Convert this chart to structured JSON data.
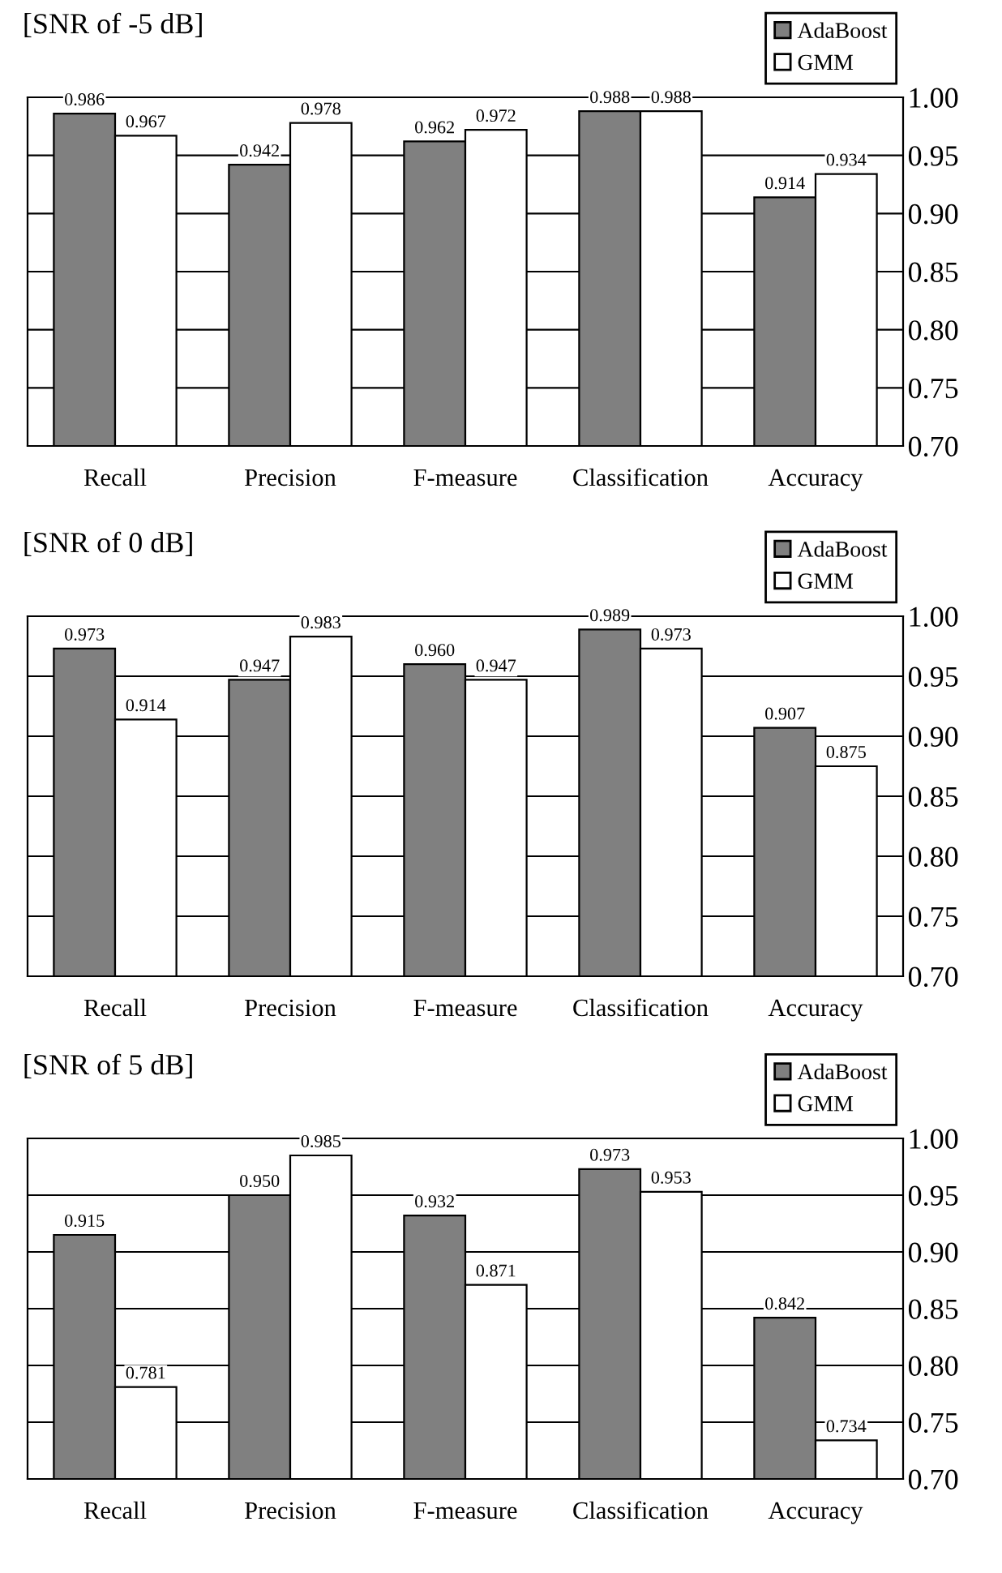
{
  "chart_data": [
    {
      "type": "bar",
      "title": "[SNR of -5 dB]",
      "categories": [
        "Recall",
        "Precision",
        "F-measure",
        "Classification",
        "Accuracy"
      ],
      "series": [
        {
          "name": "AdaBoost",
          "color": "#808080",
          "values": [
            0.986,
            0.942,
            0.962,
            0.988,
            0.914
          ],
          "value_labels": [
            "0.986",
            "0.942",
            "0.962",
            "0.988",
            "0.914"
          ]
        },
        {
          "name": "GMM",
          "color": "#ffffff",
          "values": [
            0.967,
            0.978,
            0.972,
            0.988,
            0.934
          ],
          "value_labels": [
            "0.967",
            "0.978",
            "0.972",
            "0.988",
            "0.934"
          ]
        }
      ],
      "ylim": [
        0.7,
        1.0
      ],
      "yticks": [
        {
          "value": 0.7,
          "label": "0.70"
        },
        {
          "value": 0.75,
          "label": "0.75"
        },
        {
          "value": 0.8,
          "label": "0.80"
        },
        {
          "value": 0.85,
          "label": "0.85"
        },
        {
          "value": 0.9,
          "label": "0.90"
        },
        {
          "value": 0.95,
          "label": "0.95"
        },
        {
          "value": 1.0,
          "label": "1.00"
        }
      ],
      "grid": "y",
      "legend": "top right"
    },
    {
      "type": "bar",
      "title": "[SNR of 0 dB]",
      "categories": [
        "Recall",
        "Precision",
        "F-measure",
        "Classification",
        "Accuracy"
      ],
      "series": [
        {
          "name": "AdaBoost",
          "color": "#808080",
          "values": [
            0.973,
            0.947,
            0.96,
            0.989,
            0.907
          ],
          "value_labels": [
            "0.973",
            "0.947",
            "0.960",
            "0.989",
            "0.907"
          ]
        },
        {
          "name": "GMM",
          "color": "#ffffff",
          "values": [
            0.914,
            0.983,
            0.947,
            0.973,
            0.875
          ],
          "value_labels": [
            "0.914",
            "0.983",
            "0.947",
            "0.973",
            "0.875"
          ]
        }
      ],
      "ylim": [
        0.7,
        1.0
      ],
      "yticks": [
        {
          "value": 0.7,
          "label": "0.70"
        },
        {
          "value": 0.75,
          "label": "0.75"
        },
        {
          "value": 0.8,
          "label": "0.80"
        },
        {
          "value": 0.85,
          "label": "0.85"
        },
        {
          "value": 0.9,
          "label": "0.90"
        },
        {
          "value": 0.95,
          "label": "0.95"
        },
        {
          "value": 1.0,
          "label": "1.00"
        }
      ],
      "grid": "y",
      "legend": "top right"
    },
    {
      "type": "bar",
      "title": "[SNR of 5 dB]",
      "categories": [
        "Recall",
        "Precision",
        "F-measure",
        "Classification",
        "Accuracy"
      ],
      "series": [
        {
          "name": "AdaBoost",
          "color": "#808080",
          "values": [
            0.915,
            0.95,
            0.932,
            0.973,
            0.842
          ],
          "value_labels": [
            "0.915",
            "0.950",
            "0.932",
            "0.973",
            "0.842"
          ]
        },
        {
          "name": "GMM",
          "color": "#ffffff",
          "values": [
            0.781,
            0.985,
            0.871,
            0.953,
            0.734
          ],
          "value_labels": [
            "0.781",
            "0.985",
            "0.871",
            "0.953",
            "0.734"
          ]
        }
      ],
      "ylim": [
        0.7,
        1.0
      ],
      "yticks": [
        {
          "value": 0.7,
          "label": "0.70"
        },
        {
          "value": 0.75,
          "label": "0.75"
        },
        {
          "value": 0.8,
          "label": "0.80"
        },
        {
          "value": 0.85,
          "label": "0.85"
        },
        {
          "value": 0.9,
          "label": "0.90"
        },
        {
          "value": 0.95,
          "label": "0.95"
        },
        {
          "value": 1.0,
          "label": "1.00"
        }
      ],
      "grid": "y",
      "legend": "top right"
    }
  ]
}
